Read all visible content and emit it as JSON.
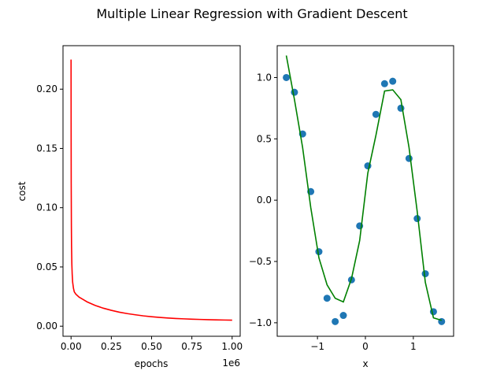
{
  "figure": {
    "title": "Multiple Linear Regression with Gradient Descent"
  },
  "chart_data": [
    {
      "type": "line",
      "xlabel": "epochs",
      "ylabel": "cost",
      "x_offset_label": "1e6",
      "xlim": [
        -0.05,
        1.05
      ],
      "ylim": [
        -0.0085,
        0.2367
      ],
      "xticks": [
        0.0,
        0.25,
        0.5,
        0.75,
        1.0
      ],
      "xtick_labels": [
        "0.00",
        "0.25",
        "0.50",
        "0.75",
        "1.00"
      ],
      "yticks": [
        0.0,
        0.05,
        0.1,
        0.15,
        0.2
      ],
      "ytick_labels": [
        "0.00",
        "0.05",
        "0.10",
        "0.15",
        "0.20"
      ],
      "grid": false,
      "series": [
        {
          "color": "#ff0000",
          "x": [
            0,
            0.0005,
            0.001,
            0.002,
            0.003,
            0.005,
            0.007,
            0.01,
            0.015,
            0.02,
            0.03,
            0.05,
            0.075,
            0.1,
            0.15,
            0.2,
            0.25,
            0.3,
            0.35,
            0.4,
            0.45,
            0.5,
            0.55,
            0.6,
            0.65,
            0.7,
            0.75,
            0.8,
            0.85,
            0.9,
            0.95,
            1.0
          ],
          "y": [
            0.225,
            0.16,
            0.12,
            0.085,
            0.068,
            0.052,
            0.044,
            0.037,
            0.032,
            0.029,
            0.027,
            0.0245,
            0.0225,
            0.0205,
            0.0175,
            0.0152,
            0.0134,
            0.0118,
            0.0106,
            0.0096,
            0.0087,
            0.008,
            0.0074,
            0.0069,
            0.0065,
            0.0062,
            0.0059,
            0.0057,
            0.0055,
            0.0053,
            0.0052,
            0.0051
          ]
        }
      ]
    },
    {
      "type": "scatter",
      "xlabel": "x",
      "ylabel": "",
      "xlim": [
        -1.84,
        1.84
      ],
      "ylim": [
        -1.11,
        1.26
      ],
      "xticks": [
        -1,
        0,
        1
      ],
      "xtick_labels": [
        "−1",
        "0",
        "1"
      ],
      "yticks": [
        -1.0,
        -0.5,
        0.0,
        0.5,
        1.0
      ],
      "ytick_labels": [
        "−1.0",
        "−0.5",
        "0.0",
        "0.5",
        "1.0"
      ],
      "grid": false,
      "series": [
        {
          "kind": "scatter",
          "color": "#1f77b4",
          "x": [
            -1.65,
            -1.48,
            -1.31,
            -1.14,
            -0.97,
            -0.8,
            -0.63,
            -0.46,
            -0.29,
            -0.12,
            0.05,
            0.22,
            0.4,
            0.57,
            0.74,
            0.91,
            1.08,
            1.25,
            1.42,
            1.59
          ],
          "y": [
            1.0,
            0.88,
            0.54,
            0.07,
            -0.42,
            -0.8,
            -0.99,
            -0.94,
            -0.65,
            -0.21,
            0.28,
            0.7,
            0.95,
            0.97,
            0.75,
            0.34,
            -0.15,
            -0.6,
            -0.91,
            -0.99
          ]
        },
        {
          "kind": "line",
          "color": "#008000",
          "x": [
            -1.65,
            -1.48,
            -1.31,
            -1.14,
            -0.97,
            -0.8,
            -0.63,
            -0.46,
            -0.29,
            -0.12,
            0.05,
            0.22,
            0.4,
            0.57,
            0.74,
            0.91,
            1.08,
            1.25,
            1.42,
            1.59
          ],
          "y": [
            1.18,
            0.82,
            0.43,
            -0.06,
            -0.47,
            -0.69,
            -0.8,
            -0.83,
            -0.64,
            -0.33,
            0.22,
            0.53,
            0.89,
            0.9,
            0.82,
            0.43,
            -0.09,
            -0.67,
            -0.96,
            -0.98
          ]
        }
      ]
    }
  ]
}
